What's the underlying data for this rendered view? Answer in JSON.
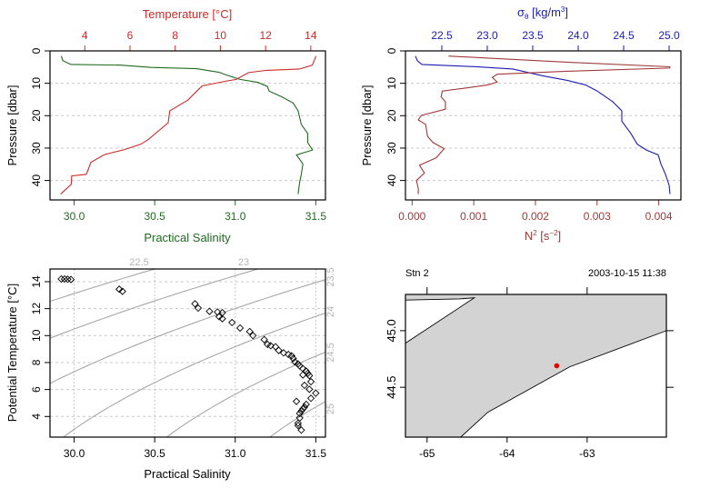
{
  "chart_data": [
    {
      "type": "line",
      "panel": "salinity-temperature-profile",
      "xlabel": "Practical Salinity",
      "x2label": "Temperature [°C]",
      "ylabel": "Pressure [dbar]",
      "xlim": [
        29.85,
        31.56
      ],
      "x2lim": [
        2.46,
        14.65
      ],
      "ylim": [
        46,
        0
      ],
      "xticks": [
        30.0,
        30.5,
        31.0,
        31.5
      ],
      "xtick_labels": [
        "30.0",
        "30.5",
        "31.0",
        "31.5"
      ],
      "x2ticks": [
        4,
        6,
        8,
        10,
        12,
        14
      ],
      "x2tick_labels": [
        "4",
        "6",
        "8",
        "10",
        "12",
        "14"
      ],
      "yticks": [
        0,
        10,
        20,
        30,
        40
      ],
      "ytick_labels": [
        "0",
        "10",
        "20",
        "30",
        "40"
      ],
      "grid": "horizontal dashed",
      "colors": {
        "salinity": "#1f6b1f",
        "temperature": "#cc2a2a"
      },
      "series": [
        {
          "axis": "bottom",
          "color": "#1f6b1f",
          "x": [
            29.92,
            29.93,
            29.98,
            30.29,
            30.48,
            30.76,
            30.9,
            30.93,
            31.03,
            31.14,
            31.2,
            31.21,
            31.29,
            31.36,
            31.39,
            31.41,
            31.45,
            31.45,
            31.48,
            31.38,
            31.42,
            31.41,
            31.4,
            31.39
          ],
          "y": [
            1.6,
            3.0,
            4.2,
            4.4,
            5.1,
            5.5,
            6.6,
            7.2,
            8.8,
            9.7,
            11.0,
            12.4,
            14.2,
            16.1,
            18.5,
            22.7,
            25.5,
            28.3,
            30.6,
            32.1,
            34.9,
            38.1,
            40.5,
            44.2
          ]
        },
        {
          "axis": "top",
          "color": "#cc2a2a",
          "x": [
            14.23,
            14.07,
            13.5,
            12.05,
            11.25,
            10.7,
            10.2,
            9.2,
            9.03,
            8.56,
            7.76,
            7.69,
            6.8,
            6.48,
            5.74,
            4.87,
            4.27,
            4.07,
            3.42,
            3.4,
            2.93
          ],
          "y": [
            1.6,
            4.4,
            5.6,
            6.0,
            6.7,
            8.8,
            9.4,
            10.8,
            11.9,
            15.2,
            18.5,
            22.2,
            27.4,
            28.8,
            30.5,
            32.0,
            34.4,
            38.1,
            38.6,
            41.2,
            44.2
          ]
        }
      ]
    },
    {
      "type": "line",
      "panel": "density-stratification-profile",
      "xlabel_parts": [
        "N",
        "2",
        " [s",
        "−2",
        "]"
      ],
      "x2label_parts": [
        "σ",
        "θ",
        " [kg/m",
        "3",
        "]"
      ],
      "ylabel": "Pressure [dbar]",
      "xlim": [
        -0.000108,
        0.00436
      ],
      "x2lim": [
        22.1,
        25.13
      ],
      "ylim": [
        46,
        0
      ],
      "xticks": [
        0,
        0.001,
        0.002,
        0.003,
        0.004
      ],
      "xtick_labels": [
        "0.000",
        "0.001",
        "0.002",
        "0.003",
        "0.004"
      ],
      "x2ticks": [
        22.5,
        23.0,
        23.5,
        24.0,
        24.5,
        25.0
      ],
      "x2tick_labels": [
        "22.5",
        "23.0",
        "23.5",
        "24.0",
        "24.5",
        "25.0"
      ],
      "yticks": [
        0,
        10,
        20,
        30,
        40
      ],
      "ytick_labels": [
        "0",
        "10",
        "20",
        "30",
        "40"
      ],
      "grid": "horizontal dashed",
      "colors": {
        "N2": "#a03a3a",
        "sigma_theta": "#1c1cb0"
      },
      "series": [
        {
          "axis": "top",
          "color": "#1c1cb0",
          "x": [
            22.21,
            22.23,
            22.28,
            22.88,
            23.28,
            23.44,
            23.61,
            23.88,
            24.08,
            24.21,
            24.38,
            24.48,
            24.48,
            24.58,
            24.65,
            24.75,
            24.88,
            24.91,
            24.96,
            25.0,
            25.01
          ],
          "y": [
            1.6,
            3.0,
            4.2,
            4.9,
            5.6,
            6.6,
            7.7,
            9.1,
            10.5,
            12.4,
            15.7,
            18.5,
            21.7,
            25.5,
            28.8,
            30.6,
            32.1,
            34.9,
            38.1,
            41.4,
            44.2
          ]
        },
        {
          "axis": "bottom",
          "color": "#a03a3a",
          "x": [
            0.00059,
            0.00251,
            0.00418,
            0.00418,
            0.0025,
            0.00138,
            0.0013,
            0.00138,
            0.00123,
            0.00089,
            0.00049,
            0.00047,
            0.00054,
            0.00054,
            0.00015,
            0.0001,
            0.00022,
            0.00025,
            0.00034,
            0.00052,
            0.00039,
            0.00012,
            0.0002,
            7e-05,
            0.0001,
            0.0001
          ],
          "y": [
            1.6,
            3.5,
            4.9,
            5.3,
            6.3,
            7.2,
            8.2,
            9.6,
            10.5,
            11.4,
            12.4,
            14.2,
            15.7,
            18.0,
            19.9,
            21.3,
            22.7,
            26.4,
            28.3,
            30.2,
            33.0,
            35.3,
            37.7,
            40.0,
            42.4,
            44.2
          ]
        }
      ]
    },
    {
      "type": "scatter",
      "panel": "TS-diagram",
      "xlabel": "Practical Salinity",
      "ylabel": "Potential Temperature [°C]",
      "xlim": [
        29.85,
        31.56
      ],
      "ylim": [
        2.47,
        14.94
      ],
      "xticks": [
        30.0,
        30.5,
        31.0,
        31.5
      ],
      "xtick_labels": [
        "30.0",
        "30.5",
        "31.0",
        "31.5"
      ],
      "yticks": [
        4,
        6,
        8,
        10,
        12,
        14
      ],
      "ytick_labels": [
        "4",
        "6",
        "8",
        "10",
        "12",
        "14"
      ],
      "grid": "dotted both",
      "marker": "open-diamond",
      "density_contours": {
        "levels": [
          22.5,
          23.0,
          23.5,
          24.0,
          24.5,
          25.0
        ],
        "labels": [
          "22.5",
          "23",
          "23.5",
          "24",
          "24.5",
          "25"
        ],
        "color": "#a0a0a0"
      },
      "x": [
        29.92,
        29.94,
        29.96,
        29.98,
        30.28,
        30.3,
        30.75,
        30.77,
        30.84,
        30.89,
        30.92,
        30.9,
        30.92,
        30.98,
        31.03,
        31.09,
        31.11,
        31.18,
        31.2,
        31.22,
        31.25,
        31.27,
        31.3,
        31.33,
        31.35,
        31.36,
        31.37,
        31.39,
        31.4,
        31.42,
        31.44,
        31.45,
        31.46,
        31.42,
        31.47,
        31.43,
        31.46,
        31.5,
        31.47,
        31.38,
        31.44,
        31.43,
        31.42,
        31.41,
        31.4,
        31.4,
        31.39,
        31.39,
        31.41
      ],
      "y": [
        14.2,
        14.2,
        14.18,
        14.16,
        13.44,
        13.28,
        12.36,
        12.04,
        11.8,
        11.75,
        11.7,
        11.4,
        11.25,
        10.97,
        10.56,
        10.3,
        10.0,
        9.7,
        9.35,
        9.25,
        9.17,
        8.9,
        8.72,
        8.6,
        8.5,
        8.3,
        8.05,
        7.9,
        7.75,
        7.55,
        7.37,
        7.2,
        7.03,
        7.08,
        6.58,
        6.31,
        6.02,
        5.73,
        5.35,
        5.12,
        4.9,
        4.7,
        4.56,
        4.4,
        4.22,
        3.89,
        3.5,
        3.33,
        2.99
      ]
    },
    {
      "type": "map",
      "panel": "station-map",
      "title_left": "Stn 2",
      "title_right": "2003-10-15 11:38",
      "xlim": [
        -65.27,
        -62.01
      ],
      "ylim": [
        44.06,
        45.32
      ],
      "xticks": [
        -65,
        -64,
        -63
      ],
      "xtick_labels": [
        "-65",
        "-64",
        "-63"
      ],
      "yticks": [
        45.0,
        44.5
      ],
      "ytick_labels": [
        "45.0",
        "44.5"
      ],
      "land_color": "#d3d3d3",
      "station_color": "#e00000",
      "station": {
        "lon": -63.38,
        "lat": 44.69
      },
      "land_polygon": {
        "lon": [
          -65.27,
          -64.6,
          -64.41,
          -65.27,
          -65.27,
          -64.58,
          -64.24,
          -63.22,
          -62.01,
          -62.01,
          -65.27
        ],
        "lat": [
          45.27,
          45.28,
          45.29,
          44.89,
          44.06,
          44.06,
          44.28,
          44.68,
          45.0,
          45.32,
          45.32
        ]
      }
    }
  ]
}
